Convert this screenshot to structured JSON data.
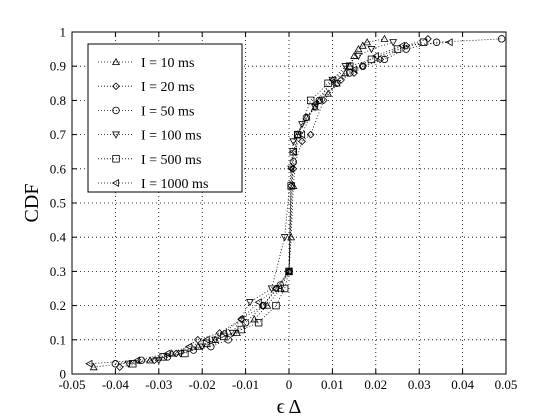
{
  "chart_data": {
    "type": "scatter",
    "title": "",
    "xlabel": "ϵ Δ",
    "ylabel": "CDF",
    "xlim": [
      -0.05,
      0.05
    ],
    "ylim": [
      0,
      1
    ],
    "xticks": [
      "-0.05",
      "-0.04",
      "-0.03",
      "-0.02",
      "-0.01",
      "0",
      "0.01",
      "0.02",
      "0.03",
      "0.04",
      "0.05"
    ],
    "yticks": [
      "0",
      "0.1",
      "0.2",
      "0.3",
      "0.4",
      "0.5",
      "0.6",
      "0.7",
      "0.8",
      "0.9",
      "1"
    ],
    "grid": true,
    "legend_position": "top-left",
    "line_style": "dotted",
    "series": [
      {
        "name": "I = 10 ms",
        "marker": "triangle-up",
        "x": [
          -0.045,
          -0.032,
          -0.027,
          -0.021,
          -0.017,
          -0.012,
          -0.008,
          -0.005,
          -0.002,
          0.0,
          0.0005,
          0.001,
          0.002,
          0.004,
          0.006,
          0.007,
          0.009,
          0.011,
          0.013,
          0.014,
          0.015,
          0.016,
          0.017,
          0.018,
          0.022
        ],
        "y": [
          0.02,
          0.04,
          0.06,
          0.08,
          0.1,
          0.12,
          0.16,
          0.2,
          0.25,
          0.3,
          0.4,
          0.55,
          0.7,
          0.75,
          0.78,
          0.8,
          0.82,
          0.85,
          0.88,
          0.9,
          0.93,
          0.95,
          0.96,
          0.97,
          0.98
        ]
      },
      {
        "name": "I = 20 ms",
        "marker": "diamond",
        "x": [
          -0.039,
          -0.031,
          -0.026,
          -0.021,
          -0.016,
          -0.011,
          -0.006,
          -0.003,
          0.0,
          0.0005,
          0.001,
          0.003,
          0.005,
          0.008,
          0.012,
          0.015,
          0.017,
          0.021,
          0.027,
          0.032
        ],
        "y": [
          0.02,
          0.04,
          0.06,
          0.1,
          0.12,
          0.16,
          0.2,
          0.25,
          0.3,
          0.55,
          0.6,
          0.68,
          0.7,
          0.8,
          0.86,
          0.88,
          0.9,
          0.92,
          0.96,
          0.98
        ]
      },
      {
        "name": "I = 50 ms",
        "marker": "circle",
        "x": [
          -0.04,
          -0.034,
          -0.028,
          -0.022,
          -0.018,
          -0.014,
          -0.01,
          -0.006,
          -0.002,
          0.0,
          0.001,
          0.002,
          0.004,
          0.007,
          0.011,
          0.014,
          0.017,
          0.022,
          0.027,
          0.034,
          0.049
        ],
        "y": [
          0.03,
          0.04,
          0.05,
          0.07,
          0.08,
          0.1,
          0.15,
          0.2,
          0.26,
          0.3,
          0.62,
          0.7,
          0.75,
          0.8,
          0.85,
          0.88,
          0.9,
          0.92,
          0.95,
          0.97,
          0.98
        ]
      },
      {
        "name": "I = 100 ms",
        "marker": "triangle-down",
        "x": [
          -0.037,
          -0.03,
          -0.025,
          -0.02,
          -0.017,
          -0.013,
          -0.009,
          -0.004,
          -0.001,
          0.0005,
          0.001,
          0.003,
          0.006,
          0.01,
          0.013,
          0.016,
          0.019,
          0.024
        ],
        "y": [
          0.03,
          0.04,
          0.06,
          0.08,
          0.1,
          0.12,
          0.21,
          0.25,
          0.4,
          0.6,
          0.68,
          0.73,
          0.78,
          0.86,
          0.9,
          0.93,
          0.95,
          0.97
        ]
      },
      {
        "name": "I = 500 ms",
        "marker": "square",
        "x": [
          -0.036,
          -0.029,
          -0.024,
          -0.019,
          -0.015,
          -0.011,
          -0.007,
          -0.003,
          -0.001,
          0.0,
          0.0005,
          0.001,
          0.002,
          0.005,
          0.009,
          0.014,
          0.019,
          0.025,
          0.031
        ],
        "y": [
          0.03,
          0.05,
          0.06,
          0.09,
          0.11,
          0.13,
          0.15,
          0.2,
          0.25,
          0.3,
          0.55,
          0.65,
          0.7,
          0.8,
          0.85,
          0.9,
          0.92,
          0.95,
          0.97
        ]
      },
      {
        "name": "I = 1000 ms",
        "marker": "triangle-left",
        "x": [
          -0.046,
          -0.035,
          -0.028,
          -0.023,
          -0.019,
          -0.015,
          -0.011,
          -0.007,
          -0.003,
          0.0,
          0.0005,
          0.001,
          0.003,
          0.006,
          0.01,
          0.015,
          0.02,
          0.026,
          0.037
        ],
        "y": [
          0.03,
          0.04,
          0.06,
          0.08,
          0.1,
          0.12,
          0.16,
          0.21,
          0.25,
          0.3,
          0.6,
          0.65,
          0.7,
          0.79,
          0.86,
          0.89,
          0.93,
          0.96,
          0.97
        ]
      }
    ]
  }
}
